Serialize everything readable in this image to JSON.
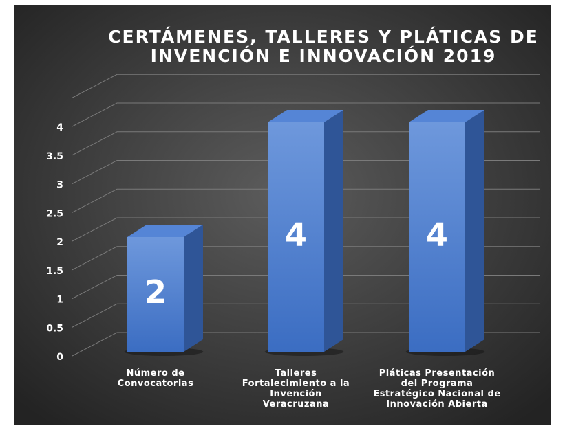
{
  "chart_data": {
    "type": "bar3d",
    "title": "CERTÁMENES, TALLERES Y PLÁTICAS DE INVENCIÓN E INNOVACIÓN 2019",
    "categories": [
      "Número de Convocatorias",
      "Talleres Fortalecimiento a la Invención Veracruzana",
      "Pláticas Presentación del Programa Estratégico Nacional de Innovación Abierta"
    ],
    "values": [
      2,
      4,
      4
    ],
    "color": "#4a7fd4",
    "ylim": [
      0,
      4.5
    ],
    "yticks": [
      0,
      0.5,
      1,
      1.5,
      2,
      2.5,
      3,
      3.5,
      4
    ],
    "grid": true
  }
}
